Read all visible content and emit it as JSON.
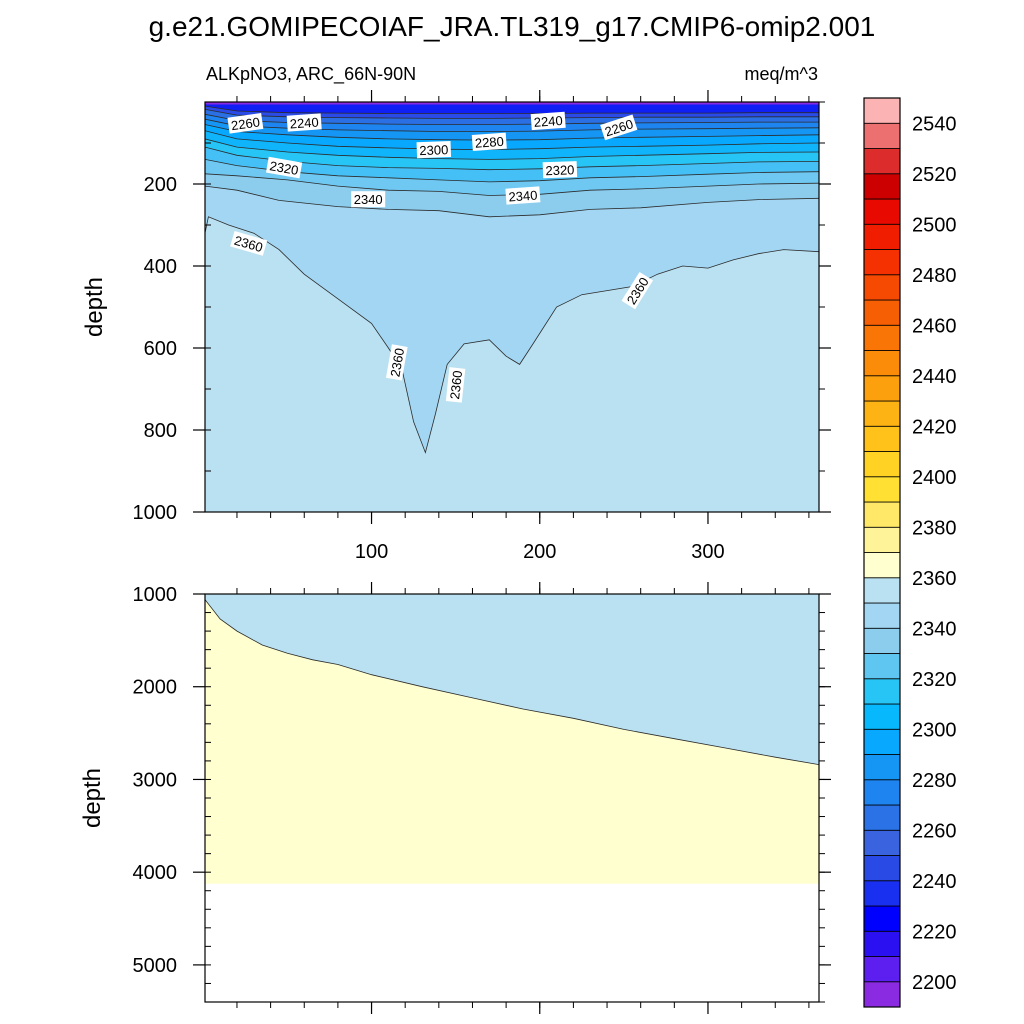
{
  "chart_data": {
    "type": "contour",
    "title": "g.e21.GOMIPECOIAF_JRA.TL319_g17.CMIP6-omip2.001",
    "subtitle_left": "ALKpNO3, ARC_66N-90N",
    "subtitle_right": "meq/m^3",
    "ylabel": "depth",
    "x_range": [
      1,
      366
    ],
    "x_ticks": [
      100,
      200,
      300
    ],
    "x_tick_labels": [
      "100",
      "200",
      "300"
    ],
    "upper_panel": {
      "ylim": [
        0,
        1000
      ],
      "y_ticks": [
        200,
        400,
        600,
        800,
        1000
      ],
      "y_tick_labels": [
        "200",
        "400",
        "600",
        "800",
        "1000"
      ],
      "contour_lines": [
        {
          "level": 2340,
          "points": [
            [
              1,
              205
            ],
            [
              20,
              215
            ],
            [
              45,
              240
            ],
            [
              80,
              255
            ],
            [
              110,
              262
            ],
            [
              140,
              265
            ],
            [
              170,
              280
            ],
            [
              200,
              275
            ],
            [
              230,
              262
            ],
            [
              260,
              258
            ],
            [
              300,
              245
            ],
            [
              330,
              238
            ],
            [
              366,
              235
            ]
          ]
        },
        {
          "level": 2340,
          "points": [
            [
              1,
              175
            ],
            [
              20,
              180
            ],
            [
              50,
              190
            ],
            [
              80,
              205
            ],
            [
              110,
              215
            ],
            [
              140,
              218
            ],
            [
              170,
              228
            ],
            [
              200,
              225
            ],
            [
              230,
              215
            ],
            [
              260,
              212
            ],
            [
              300,
              205
            ],
            [
              330,
              200
            ],
            [
              366,
              198
            ]
          ]
        },
        {
          "level": 2330,
          "points": [
            [
              1,
              140
            ],
            [
              20,
              155
            ],
            [
              50,
              170
            ],
            [
              80,
              180
            ],
            [
              110,
              185
            ],
            [
              140,
              190
            ],
            [
              170,
              195
            ],
            [
              200,
              192
            ],
            [
              230,
              185
            ],
            [
              260,
              182
            ],
            [
              300,
              176
            ],
            [
              330,
              172
            ],
            [
              366,
              170
            ]
          ]
        },
        {
          "level": 2320,
          "points": [
            [
              1,
              110
            ],
            [
              20,
              130
            ],
            [
              50,
              145
            ],
            [
              80,
              155
            ],
            [
              110,
              160
            ],
            [
              140,
              162
            ],
            [
              170,
              165
            ],
            [
              200,
              163
            ],
            [
              230,
              158
            ],
            [
              260,
              155
            ],
            [
              300,
              150
            ],
            [
              330,
              146
            ],
            [
              366,
              145
            ]
          ]
        },
        {
          "level": 2310,
          "points": [
            [
              1,
              90
            ],
            [
              20,
              110
            ],
            [
              50,
              122
            ],
            [
              80,
              130
            ],
            [
              110,
              135
            ],
            [
              140,
              138
            ],
            [
              170,
              140
            ],
            [
              200,
              138
            ],
            [
              230,
              133
            ],
            [
              260,
              130
            ],
            [
              300,
              126
            ],
            [
              330,
              123
            ],
            [
              366,
              122
            ]
          ]
        },
        {
          "level": 2300,
          "points": [
            [
              1,
              70
            ],
            [
              20,
              90
            ],
            [
              50,
              100
            ],
            [
              80,
              108
            ],
            [
              110,
              112
            ],
            [
              140,
              115
            ],
            [
              170,
              116
            ],
            [
              200,
              114
            ],
            [
              230,
              110
            ],
            [
              260,
              108
            ],
            [
              300,
              105
            ],
            [
              330,
              102
            ],
            [
              366,
              100
            ]
          ]
        },
        {
          "level": 2280,
          "points": [
            [
              1,
              55
            ],
            [
              20,
              72
            ],
            [
              50,
              80
            ],
            [
              80,
              86
            ],
            [
              110,
              90
            ],
            [
              140,
              92
            ],
            [
              170,
              93
            ],
            [
              200,
              92
            ],
            [
              230,
              88
            ],
            [
              260,
              86
            ],
            [
              300,
              84
            ],
            [
              330,
              82
            ],
            [
              366,
              80
            ]
          ]
        },
        {
          "level": 2260,
          "points": [
            [
              1,
              42
            ],
            [
              20,
              58
            ],
            [
              50,
              64
            ],
            [
              80,
              68
            ],
            [
              110,
              70
            ],
            [
              140,
              72
            ],
            [
              170,
              72
            ],
            [
              200,
              71
            ],
            [
              230,
              68
            ],
            [
              260,
              66
            ],
            [
              300,
              65
            ],
            [
              330,
              64
            ],
            [
              366,
              63
            ]
          ]
        },
        {
          "level": 2240,
          "points": [
            [
              1,
              30
            ],
            [
              20,
              45
            ],
            [
              50,
              50
            ],
            [
              80,
              52
            ],
            [
              110,
              54
            ],
            [
              140,
              55
            ],
            [
              170,
              55
            ],
            [
              200,
              54
            ],
            [
              230,
              52
            ],
            [
              260,
              51
            ],
            [
              300,
              50
            ],
            [
              330,
              49
            ],
            [
              366,
              49
            ]
          ]
        },
        {
          "level": 2220,
          "points": [
            [
              1,
              18
            ],
            [
              20,
              32
            ],
            [
              50,
              36
            ],
            [
              80,
              38
            ],
            [
              110,
              39
            ],
            [
              140,
              40
            ],
            [
              170,
              40
            ],
            [
              200,
              39
            ],
            [
              230,
              38
            ],
            [
              260,
              37
            ],
            [
              300,
              37
            ],
            [
              330,
              36
            ],
            [
              366,
              36
            ]
          ]
        },
        {
          "level": 2210,
          "points": [
            [
              1,
              10
            ],
            [
              20,
              22
            ],
            [
              50,
              26
            ],
            [
              80,
              27
            ],
            [
              110,
              28
            ],
            [
              140,
              28
            ],
            [
              170,
              28
            ],
            [
              200,
              28
            ],
            [
              230,
              27
            ],
            [
              260,
              27
            ],
            [
              300,
              27
            ],
            [
              330,
              26
            ],
            [
              366,
              26
            ]
          ]
        },
        {
          "level": 2360,
          "points": [
            [
              1,
              320
            ],
            [
              3,
              280
            ],
            [
              15,
              300
            ],
            [
              30,
              320
            ],
            [
              45,
              360
            ],
            [
              60,
              420
            ],
            [
              80,
              480
            ],
            [
              100,
              540
            ],
            [
              110,
              600
            ],
            [
              118,
              650
            ],
            [
              125,
              780
            ],
            [
              132,
              855
            ],
            [
              138,
              760
            ],
            [
              145,
              640
            ],
            [
              155,
              590
            ],
            [
              170,
              580
            ],
            [
              180,
              620
            ],
            [
              188,
              640
            ],
            [
              196,
              590
            ],
            [
              210,
              500
            ],
            [
              225,
              470
            ],
            [
              240,
              460
            ],
            [
              255,
              450
            ],
            [
              270,
              420
            ],
            [
              285,
              400
            ],
            [
              300,
              405
            ],
            [
              315,
              385
            ],
            [
              330,
              370
            ],
            [
              345,
              360
            ],
            [
              366,
              365
            ]
          ]
        }
      ],
      "contour_labels": [
        {
          "text": "2260",
          "x": 25,
          "y": 52,
          "rotate": -8
        },
        {
          "text": "2240",
          "x": 60,
          "y": 50,
          "rotate": -4
        },
        {
          "text": "2320",
          "x": 48,
          "y": 160,
          "rotate": 10
        },
        {
          "text": "2300",
          "x": 137,
          "y": 116,
          "rotate": -2
        },
        {
          "text": "2280",
          "x": 170,
          "y": 97,
          "rotate": -4
        },
        {
          "text": "2240",
          "x": 205,
          "y": 46,
          "rotate": -4
        },
        {
          "text": "2260",
          "x": 247,
          "y": 62,
          "rotate": -18
        },
        {
          "text": "2320",
          "x": 212,
          "y": 165,
          "rotate": -2
        },
        {
          "text": "2340",
          "x": 98,
          "y": 237,
          "rotate": 0
        },
        {
          "text": "2340",
          "x": 190,
          "y": 228,
          "rotate": -4
        },
        {
          "text": "2360",
          "x": 27,
          "y": 345,
          "rotate": 16
        },
        {
          "text": "2360",
          "x": 115,
          "y": 635,
          "rotate": -80
        },
        {
          "text": "2360",
          "x": 150,
          "y": 690,
          "rotate": -84
        },
        {
          "text": "2360",
          "x": 258,
          "y": 460,
          "rotate": -58
        }
      ]
    },
    "lower_panel": {
      "ylim": [
        1000,
        5400
      ],
      "y_ticks": [
        1000,
        2000,
        3000,
        4000,
        5000
      ],
      "y_tick_labels": [
        "1000",
        "2000",
        "3000",
        "4000",
        "5000"
      ],
      "boundary_2370": [
        [
          1,
          1060
        ],
        [
          10,
          1270
        ],
        [
          20,
          1400
        ],
        [
          35,
          1550
        ],
        [
          50,
          1640
        ],
        [
          65,
          1710
        ],
        [
          80,
          1760
        ],
        [
          100,
          1870
        ],
        [
          130,
          2000
        ],
        [
          160,
          2120
        ],
        [
          190,
          2240
        ],
        [
          220,
          2340
        ],
        [
          250,
          2460
        ],
        [
          280,
          2560
        ],
        [
          310,
          2660
        ],
        [
          340,
          2760
        ],
        [
          366,
          2840
        ]
      ],
      "bottom_depth": 4125
    },
    "colorbar": {
      "levels": [
        2200,
        2210,
        2220,
        2230,
        2240,
        2250,
        2260,
        2270,
        2280,
        2290,
        2300,
        2310,
        2320,
        2330,
        2340,
        2350,
        2360,
        2370,
        2380,
        2390,
        2400,
        2410,
        2420,
        2430,
        2440,
        2450,
        2460,
        2470,
        2480,
        2490,
        2500,
        2510,
        2520,
        2530,
        2540,
        2550
      ],
      "labels": [
        "2200",
        "2220",
        "2240",
        "2260",
        "2280",
        "2300",
        "2320",
        "2340",
        "2360",
        "2380",
        "2400",
        "2420",
        "2440",
        "2460",
        "2480",
        "2500",
        "2520",
        "2540"
      ],
      "colors": [
        "#8a2be2",
        "#5c1ff0",
        "#2b10f2",
        "#0000ff",
        "#1a30f0",
        "#2a4ae6",
        "#3a63e0",
        "#2a72e6",
        "#1e84f0",
        "#1596f5",
        "#09a8ff",
        "#07b8fc",
        "#27c4f6",
        "#5ec6f0",
        "#8ccdee",
        "#a3d6f2",
        "#bae1f2",
        "#ffffd0",
        "#fff39a",
        "#ffe868",
        "#ffe033",
        "#ffd224",
        "#fec21a",
        "#fdb314",
        "#fca00e",
        "#fb8c09",
        "#f97606",
        "#f75f04",
        "#f64a02",
        "#f53101",
        "#f11d00",
        "#e80a00",
        "#cc0000",
        "#dc2c2c",
        "#ed7070",
        "#fbb3b3"
      ]
    }
  }
}
